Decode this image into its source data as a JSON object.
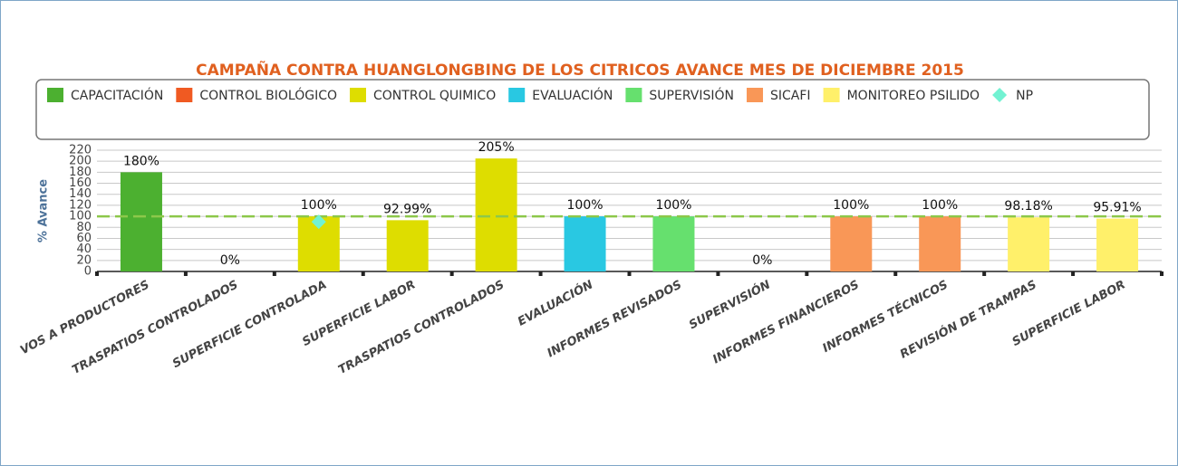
{
  "chart_data": {
    "type": "bar",
    "title": "CAMPAÑA CONTRA HUANGLONGBING DE LOS CITRICOS AVANCE MES DE DICIEMBRE 2015",
    "y_label": "% Avance",
    "categories": [
      "VOS A PRODUCTORES",
      "TRASPATIOS CONTROLADOS",
      "SUPERFICIE CONTROLADA",
      "SUPERFICIE LABOR",
      "TRASPATIOS CONTROLADOS",
      "EVALUACIÓN",
      "INFORMES REVISADOS",
      "SUPERVISIÓN",
      "INFORMES FINANCIEROS",
      "INFORMES TÉCNICOS",
      "REVISIÓN DE TRAMPAS",
      "SUPERFICIE LABOR"
    ],
    "series": [
      {
        "name": "CAPACITACIÓN",
        "color": "#4cb030",
        "values": [
          180,
          null,
          null,
          null,
          null,
          null,
          null,
          null,
          null,
          null,
          null,
          null
        ],
        "value_labels": [
          "180%",
          null,
          null,
          null,
          null,
          null,
          null,
          null,
          null,
          null,
          null,
          null
        ]
      },
      {
        "name": "CONTROL BIOLÓGICO",
        "color": "#f05a22",
        "values": [
          null,
          0,
          null,
          null,
          null,
          null,
          null,
          null,
          null,
          null,
          null,
          null
        ],
        "value_labels": [
          null,
          "0%",
          null,
          null,
          null,
          null,
          null,
          null,
          null,
          null,
          null,
          null
        ]
      },
      {
        "name": "CONTROL QUIMICO",
        "color": "#dedd00",
        "values": [
          null,
          null,
          100,
          92.99,
          205,
          null,
          null,
          null,
          null,
          null,
          null,
          null
        ],
        "value_labels": [
          null,
          null,
          "100%",
          "92.99%",
          "205%",
          null,
          null,
          null,
          null,
          null,
          null,
          null
        ]
      },
      {
        "name": "EVALUACIÓN",
        "color": "#29c8e2",
        "values": [
          null,
          null,
          null,
          null,
          null,
          100,
          null,
          null,
          null,
          null,
          null,
          null
        ],
        "value_labels": [
          null,
          null,
          null,
          null,
          null,
          "100%",
          null,
          null,
          null,
          null,
          null,
          null
        ]
      },
      {
        "name": "SUPERVISIÓN",
        "color": "#66e06e",
        "values": [
          null,
          null,
          null,
          null,
          null,
          null,
          100,
          0,
          null,
          null,
          null,
          null
        ],
        "value_labels": [
          null,
          null,
          null,
          null,
          null,
          null,
          "100%",
          "0%",
          null,
          null,
          null,
          null
        ]
      },
      {
        "name": "SICAFI",
        "color": "#f99757",
        "values": [
          null,
          null,
          null,
          null,
          null,
          null,
          null,
          null,
          100,
          100,
          null,
          null
        ],
        "value_labels": [
          null,
          null,
          null,
          null,
          null,
          null,
          null,
          null,
          "100%",
          "100%",
          null,
          null
        ]
      },
      {
        "name": "MONITOREO PSILIDO",
        "color": "#fff06a",
        "values": [
          null,
          null,
          null,
          null,
          null,
          null,
          null,
          null,
          null,
          null,
          98.18,
          95.91
        ],
        "value_labels": [
          null,
          null,
          null,
          null,
          null,
          null,
          null,
          null,
          null,
          null,
          "98.18%",
          "95.91%"
        ]
      },
      {
        "name": "NP",
        "color": "#72f2d2",
        "type": "scatter",
        "values": [
          null,
          null,
          90,
          null,
          null,
          null,
          null,
          null,
          null,
          null,
          null,
          null
        ]
      }
    ],
    "plot_lines": [
      100
    ],
    "ylim": [
      0,
      220
    ],
    "yticks": [
      0,
      20,
      40,
      60,
      80,
      100,
      120,
      140,
      160,
      180,
      200,
      220
    ],
    "grid": true
  }
}
